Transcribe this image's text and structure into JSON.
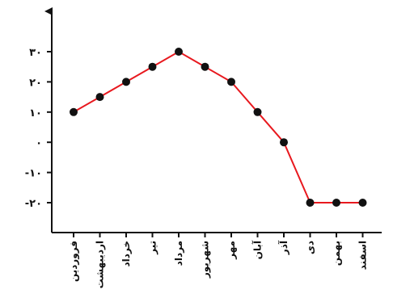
{
  "chart_data": {
    "type": "line",
    "categories": [
      "فروردین",
      "اردیبهشت",
      "خرداد",
      "تیر",
      "مرداد",
      "شهریور",
      "مهر",
      "آبان",
      "آذر",
      "دی",
      "بهمن",
      "اسفند"
    ],
    "series": [
      {
        "values": [
          10,
          15,
          20,
          25,
          30,
          25,
          20,
          10,
          0,
          -20,
          -20,
          -20
        ]
      }
    ],
    "y_ticks": [
      30,
      20,
      10,
      0,
      -10,
      -20
    ],
    "y_tick_labels": [
      "۳۰",
      "۲۰",
      "۱۰",
      "۰",
      "-۱۰",
      "-۲۰"
    ],
    "ylim": [
      -30,
      40
    ],
    "title": "",
    "xlabel": "",
    "ylabel": "",
    "grid": false,
    "line_color": "#e8191f",
    "marker_color": "#111111",
    "axis_color": "#111111"
  }
}
